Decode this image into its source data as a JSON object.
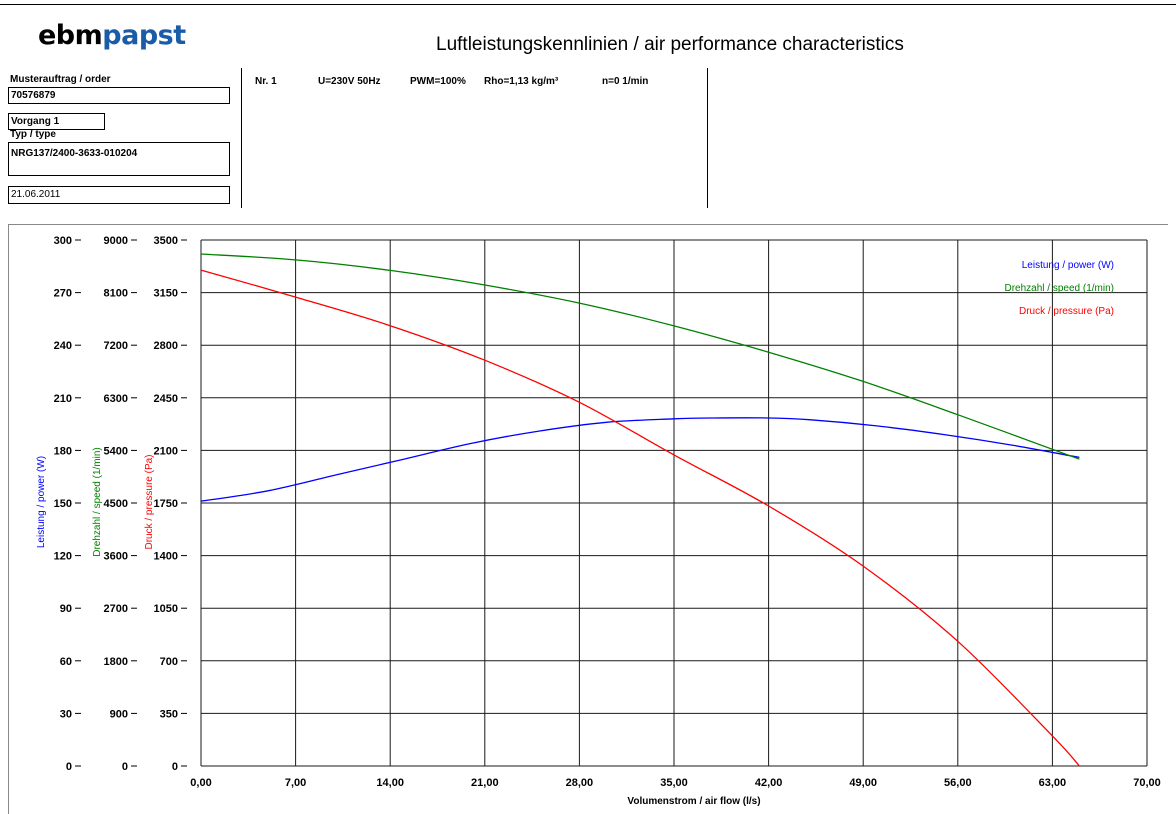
{
  "logo": {
    "part1": "ebm",
    "part2": "papst"
  },
  "title": "Luftleistungskennlinien / air performance characteristics",
  "order": {
    "label": "Musterauftrag / order",
    "value": "70576879"
  },
  "process": {
    "value": "Vorgang 1"
  },
  "type": {
    "label": "Typ / type",
    "value": "NRG137/2400-3633-010204"
  },
  "date": "21.06.2011",
  "measurement": {
    "nr": "Nr. 1",
    "voltage": "U=230V 50Hz",
    "pwm": "PWM=100%",
    "rho": "Rho=1,13 kg/m³",
    "n": "n=0 1/min"
  },
  "chart_data": {
    "type": "line",
    "xlabel": "Volumenstrom / air flow (l/s)",
    "x_ticks": [
      "0,00",
      "7,00",
      "14,00",
      "21,00",
      "28,00",
      "35,00",
      "42,00",
      "49,00",
      "56,00",
      "63,00",
      "70,00"
    ],
    "xlim": [
      0,
      70
    ],
    "axes": [
      {
        "label": "Leistung / power (W)",
        "color": "#0000ff",
        "range": [
          0,
          300
        ],
        "ticks": [
          "0",
          "30",
          "60",
          "90",
          "120",
          "150",
          "180",
          "210",
          "240",
          "270",
          "300"
        ]
      },
      {
        "label": "Drehzahl / speed (1/min)",
        "color": "#008000",
        "range": [
          0,
          9000
        ],
        "ticks": [
          "0",
          "900",
          "1800",
          "2700",
          "3600",
          "4500",
          "5400",
          "6300",
          "7200",
          "8100",
          "9000"
        ]
      },
      {
        "label": "Druck / pressure (Pa)",
        "color": "#ff0000",
        "range": [
          0,
          3500
        ],
        "ticks": [
          "0",
          "350",
          "700",
          "1050",
          "1400",
          "1750",
          "2100",
          "2450",
          "2800",
          "3150",
          "3500"
        ]
      }
    ],
    "grid": true,
    "legend_position": "top-right",
    "series": [
      {
        "name": "Leistung / power (W)",
        "color": "#0000ff",
        "axis": 0,
        "x": [
          0,
          5,
          10,
          15,
          20,
          25,
          30,
          35,
          38,
          42,
          45,
          50,
          55,
          60,
          65
        ],
        "y": [
          151,
          157,
          166,
          175,
          184,
          191,
          196,
          198,
          198.5,
          198.5,
          197.5,
          194,
          189,
          183,
          176
        ]
      },
      {
        "name": "Drehzahl / speed (1/min)",
        "color": "#008000",
        "axis": 1,
        "x": [
          0,
          7,
          14,
          21,
          28,
          35,
          42,
          49,
          56,
          65
        ],
        "y": [
          8760,
          8660,
          8480,
          8230,
          7920,
          7530,
          7080,
          6580,
          6010,
          5250
        ]
      },
      {
        "name": "Druck / pressure (Pa)",
        "color": "#ff0000",
        "axis": 2,
        "x": [
          0,
          7,
          14,
          21,
          28,
          35,
          42,
          49,
          56,
          63,
          65
        ],
        "y": [
          3300,
          3120,
          2930,
          2700,
          2420,
          2070,
          1730,
          1330,
          830,
          200,
          0
        ]
      }
    ]
  }
}
